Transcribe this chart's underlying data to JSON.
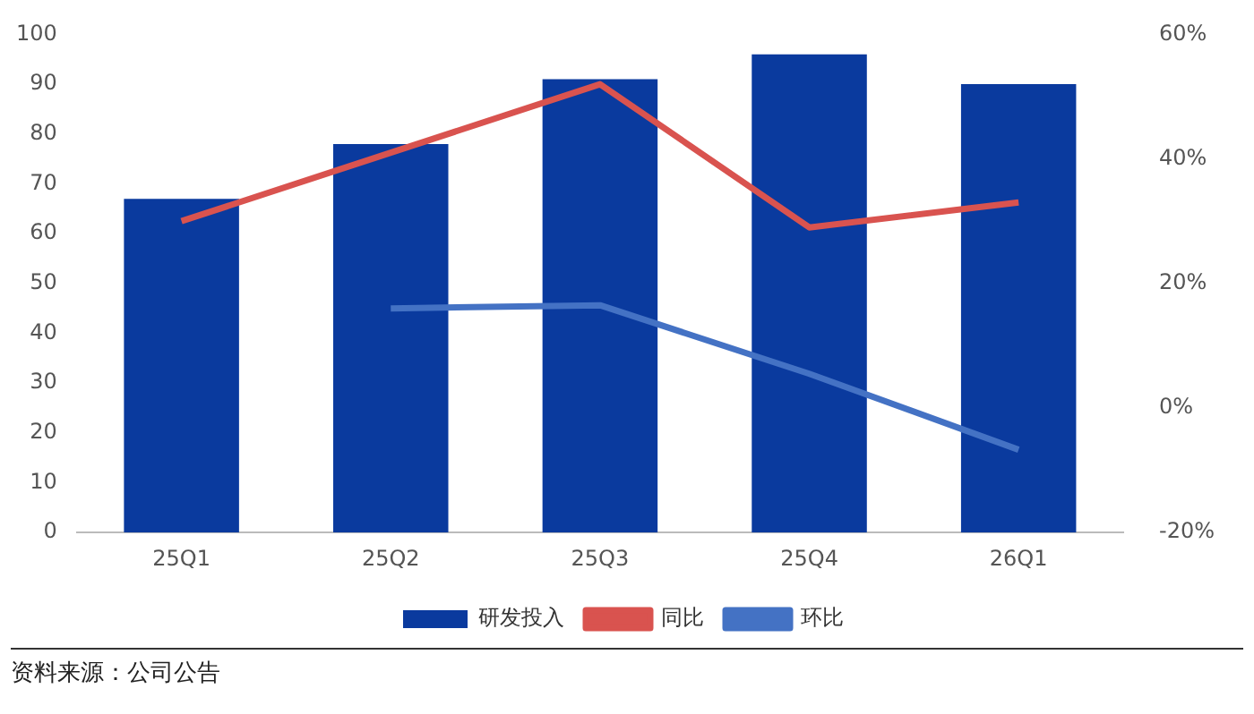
{
  "chart_data": {
    "type": "bar",
    "categories": [
      "25Q1",
      "25Q2",
      "25Q3",
      "25Q4",
      "26Q1"
    ],
    "series": [
      {
        "name": "研发投入",
        "color": "#0a3a9e",
        "values": [
          67,
          78,
          91,
          96,
          90
        ]
      },
      {
        "name": "同比",
        "type": "line",
        "axis": "y2",
        "color": "#d9534f",
        "values": [
          30,
          41,
          52,
          29,
          33
        ]
      },
      {
        "name": "环比",
        "type": "line",
        "axis": "y2",
        "color": "#4472c4",
        "values": [
          null,
          16,
          16.5,
          5.5,
          -6.7
        ]
      }
    ],
    "ylim": [
      0,
      100
    ],
    "yticks": [
      0,
      10,
      20,
      30,
      40,
      50,
      60,
      70,
      80,
      90,
      100
    ],
    "y2lim": [
      -20,
      60
    ],
    "y2ticks": [
      {
        "value": -20,
        "label": "-20%"
      },
      {
        "value": 0,
        "label": "0%"
      },
      {
        "value": 20,
        "label": "20%"
      },
      {
        "value": 40,
        "label": "40%"
      },
      {
        "value": 60,
        "label": "60%"
      }
    ],
    "legend": "bottom",
    "marker": "none",
    "line_style": "solid",
    "grid": false,
    "annotations": [
      "资料来源：公司公告"
    ]
  }
}
